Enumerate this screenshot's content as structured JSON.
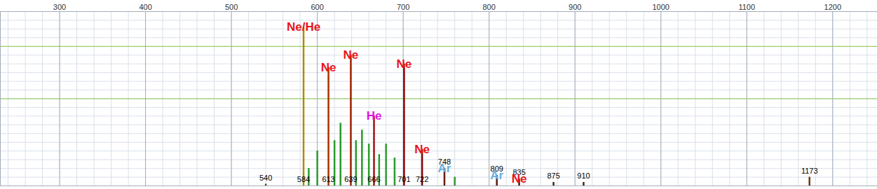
{
  "chart_data": {
    "type": "bar",
    "x": [
      540,
      584,
      590,
      600,
      613,
      620,
      627,
      639,
      645,
      652,
      660,
      666,
      672,
      680,
      690,
      701,
      722,
      748,
      760,
      809,
      835,
      875,
      910,
      1173
    ],
    "values": [
      1,
      91,
      10,
      20,
      68,
      26,
      36,
      75,
      26,
      32,
      24,
      40,
      18,
      24,
      16,
      70,
      21,
      10,
      5,
      6,
      4,
      2,
      2,
      5
    ],
    "colors": [
      "#5a4a20",
      "#b08a00",
      "#2a9a2a",
      "#2a9a2a",
      "#a83000",
      "#2a9a2a",
      "#2a9a2a",
      "#a02000",
      "#2a9a2a",
      "#2a9a2a",
      "#2a9a2a",
      "#a01010",
      "#2a9a2a",
      "#2a9a2a",
      "#2a9a2a",
      "#900000",
      "#800000",
      "#6a1a10",
      "#2a9a2a",
      "#5a1a10",
      "#4a1a10",
      "#3a2a20",
      "#3a2a20",
      "#6a3a10"
    ],
    "xlim": [
      231,
      1252
    ],
    "xticks": [
      300,
      400,
      500,
      600,
      700,
      800,
      900,
      1000,
      1100,
      1200
    ],
    "ylim": [
      0,
      100
    ],
    "yticks": [
      50,
      80
    ],
    "grid": true,
    "tick_labels": "x",
    "annotations": [
      {
        "text": "Ne/He",
        "x": 584,
        "color": [
          "#e8141c",
          "#e014e0"
        ]
      },
      {
        "text": "Ne",
        "x": 613,
        "color": "#e8141c"
      },
      {
        "text": "Ne",
        "x": 639,
        "color": "#e8141c"
      },
      {
        "text": "He",
        "x": 666,
        "color": "#e014e0"
      },
      {
        "text": "Ne",
        "x": 701,
        "color": "#e8141c"
      },
      {
        "text": "Ne",
        "x": 722,
        "color": "#e8141c"
      },
      {
        "text": "Ar",
        "x": 748,
        "color": "#6ab0de"
      },
      {
        "text": "Ar",
        "x": 809,
        "color": "#6ab0de"
      },
      {
        "text": "Ne",
        "x": 835,
        "color": "#e8141c"
      }
    ],
    "wavelength_marks": [
      540,
      584,
      613,
      639,
      666,
      701,
      722,
      748,
      809,
      835,
      875,
      910,
      1173
    ]
  }
}
